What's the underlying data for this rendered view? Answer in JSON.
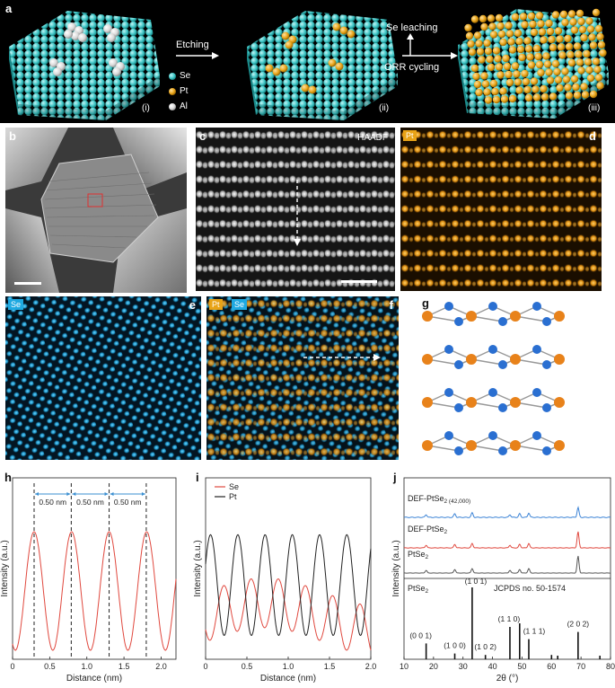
{
  "panel_a": {
    "letter": "a",
    "step_labels": [
      "(i)",
      "(ii)",
      "(iii)"
    ],
    "arrow_etching": "Etching",
    "arrow_up_label": "Se leaching",
    "arrow_down_label": "ORR cycling",
    "legend": [
      {
        "label": "Se",
        "color": "#3ec6c6"
      },
      {
        "label": "Pt",
        "color": "#e8a317"
      },
      {
        "label": "Al",
        "color": "#e6e6e6"
      }
    ]
  },
  "panel_b": {
    "letter": "b"
  },
  "panel_c": {
    "letter": "c",
    "tag": "HAADF"
  },
  "panel_d": {
    "letter": "d",
    "tag": "Pt"
  },
  "panel_e": {
    "letter": "e",
    "tag": "Se"
  },
  "panel_f": {
    "letter": "f",
    "tags": [
      "Pt",
      "Se"
    ]
  },
  "panel_g": {
    "letter": "g",
    "pt_color": "#e8821a",
    "se_color": "#2a6fd1"
  },
  "colors": {
    "accent_pt": "#e8a317",
    "accent_se": "#1ea9e1",
    "red": "#e0483e",
    "black": "#222222",
    "blue": "#3b83d6",
    "grey": "#555555"
  },
  "chart_data": [
    {
      "id": "h",
      "letter": "h",
      "type": "line",
      "xlabel": "Distance (nm)",
      "ylabel": "Intensity (a.u.)",
      "xlim": [
        0,
        2.2
      ],
      "xticks": [
        "0",
        "0.5",
        "1.0",
        "1.5",
        "2.0"
      ],
      "xtick_values": [
        0,
        0.5,
        1.0,
        1.5,
        2.0
      ],
      "peaks": [
        0.29,
        0.79,
        1.3,
        1.8
      ],
      "spacing_labels": [
        "0.50 nm",
        "0.50 nm",
        "0.50 nm"
      ],
      "series": [
        {
          "name": "profile",
          "color": "#e0483e",
          "period": 0.505,
          "phase": 0.29,
          "amp": 1.0,
          "base": 0.5
        }
      ]
    },
    {
      "id": "i",
      "letter": "i",
      "type": "line",
      "xlabel": "Distance (nm)",
      "ylabel": "Intensity (a.u.)",
      "xlim": [
        0,
        2.0
      ],
      "xticks": [
        "0",
        "0.5",
        "1.0",
        "1.5",
        "2.0"
      ],
      "xtick_values": [
        0,
        0.5,
        1.0,
        1.5,
        2.0
      ],
      "series": [
        {
          "name": "Se",
          "color": "#e0483e",
          "period": 0.33,
          "phase": 0.22,
          "amp": 0.42,
          "base": 0.28
        },
        {
          "name": "Pt",
          "color": "#222222",
          "period": 0.33,
          "phase": 0.06,
          "amp": 0.85,
          "base": 0.55
        }
      ]
    },
    {
      "id": "j",
      "letter": "j",
      "type": "line",
      "xlabel": "2θ (°)",
      "ylabel": "Intensity (a.u.)",
      "xlim": [
        10,
        80
      ],
      "xticks": [
        "10",
        "20",
        "30",
        "40",
        "50",
        "60",
        "70",
        "80"
      ],
      "xtick_values": [
        10,
        20,
        30,
        40,
        50,
        60,
        70,
        80
      ],
      "series": [
        {
          "name": "DEF-PtSe2 (42,000)",
          "label_main": "DEF-PtSe",
          "label_sub": "2 (42,000)",
          "color": "#3b83d6",
          "peak_height": 0.55,
          "noise": 0.18
        },
        {
          "name": "DEF-PtSe2",
          "label_main": "DEF-PtSe",
          "label_sub": "2",
          "color": "#e0483e",
          "peak_height": 0.9,
          "noise": 0.08
        },
        {
          "name": "PtSe2",
          "label_main": "PtSe",
          "label_sub": "2",
          "color": "#555555",
          "peak_height": 0.95,
          "noise": 0.05
        }
      ],
      "reference": {
        "name": "PtSe2",
        "label_main": "PtSe",
        "label_sub": "2",
        "jcpds": "JCPDS no. 50-1574",
        "lines": [
          {
            "pos": 17.5,
            "h": 0.22,
            "label": "(0 0 1)"
          },
          {
            "pos": 27.2,
            "h": 0.08,
            "label": "(1 0 0)"
          },
          {
            "pos": 33.1,
            "h": 1.0,
            "label": "(1 0 1)"
          },
          {
            "pos": 37.6,
            "h": 0.06,
            "label": "(1 0 2)"
          },
          {
            "pos": 45.9,
            "h": 0.45,
            "label": "(1 1 0)"
          },
          {
            "pos": 49.2,
            "h": 0.5,
            "label": ""
          },
          {
            "pos": 52.3,
            "h": 0.28,
            "label": "(1 1 1)"
          },
          {
            "pos": 60.0,
            "h": 0.06,
            "label": ""
          },
          {
            "pos": 62.1,
            "h": 0.05,
            "label": ""
          },
          {
            "pos": 69.0,
            "h": 0.38,
            "label": "(2 0 2)"
          },
          {
            "pos": 76.4,
            "h": 0.05,
            "label": ""
          }
        ]
      },
      "sample_peaks": [
        17.5,
        27.2,
        33.1,
        45.9,
        49.2,
        52.3,
        69.0
      ]
    }
  ]
}
